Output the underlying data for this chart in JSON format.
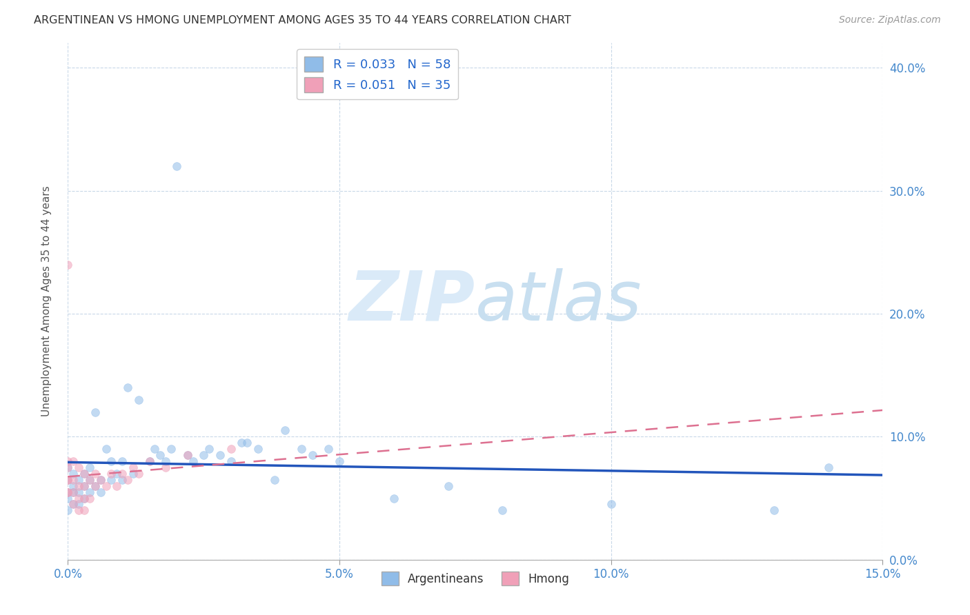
{
  "title": "ARGENTINEAN VS HMONG UNEMPLOYMENT AMONG AGES 35 TO 44 YEARS CORRELATION CHART",
  "source": "Source: ZipAtlas.com",
  "ylabel": "Unemployment Among Ages 35 to 44 years",
  "xlim": [
    0.0,
    0.15
  ],
  "ylim": [
    0.0,
    0.42
  ],
  "xticks": [
    0.0,
    0.05,
    0.1,
    0.15
  ],
  "yticks": [
    0.0,
    0.1,
    0.2,
    0.3,
    0.4
  ],
  "argentinean_color": "#90bce8",
  "hmong_color": "#f0a0b8",
  "regression_blue_color": "#2255bb",
  "regression_pink_color": "#dd7090",
  "background_color": "#ffffff",
  "watermark_color": "#daeaf8",
  "scatter_alpha": 0.55,
  "marker_size": 72,
  "argentineans_x": [
    0.0,
    0.0,
    0.0,
    0.0,
    0.0,
    0.001,
    0.001,
    0.001,
    0.001,
    0.002,
    0.002,
    0.002,
    0.003,
    0.003,
    0.003,
    0.004,
    0.004,
    0.004,
    0.005,
    0.005,
    0.006,
    0.006,
    0.007,
    0.008,
    0.008,
    0.009,
    0.01,
    0.01,
    0.011,
    0.012,
    0.013,
    0.015,
    0.016,
    0.017,
    0.018,
    0.019,
    0.02,
    0.022,
    0.023,
    0.025,
    0.026,
    0.028,
    0.03,
    0.032,
    0.033,
    0.035,
    0.038,
    0.04,
    0.043,
    0.045,
    0.048,
    0.05,
    0.06,
    0.07,
    0.08,
    0.1,
    0.13,
    0.14
  ],
  "argentineans_y": [
    0.065,
    0.055,
    0.075,
    0.05,
    0.04,
    0.07,
    0.06,
    0.055,
    0.045,
    0.065,
    0.055,
    0.045,
    0.07,
    0.06,
    0.05,
    0.065,
    0.055,
    0.075,
    0.06,
    0.12,
    0.065,
    0.055,
    0.09,
    0.065,
    0.08,
    0.07,
    0.08,
    0.065,
    0.14,
    0.07,
    0.13,
    0.08,
    0.09,
    0.085,
    0.08,
    0.09,
    0.32,
    0.085,
    0.08,
    0.085,
    0.09,
    0.085,
    0.08,
    0.095,
    0.095,
    0.09,
    0.065,
    0.105,
    0.09,
    0.085,
    0.09,
    0.08,
    0.05,
    0.06,
    0.04,
    0.045,
    0.04,
    0.075
  ],
  "hmong_x": [
    0.0,
    0.0,
    0.0,
    0.0,
    0.0,
    0.0,
    0.0,
    0.001,
    0.001,
    0.001,
    0.001,
    0.002,
    0.002,
    0.002,
    0.002,
    0.003,
    0.003,
    0.003,
    0.003,
    0.004,
    0.004,
    0.005,
    0.005,
    0.006,
    0.007,
    0.008,
    0.009,
    0.01,
    0.011,
    0.012,
    0.013,
    0.015,
    0.018,
    0.022,
    0.03
  ],
  "hmong_y": [
    0.24,
    0.08,
    0.065,
    0.055,
    0.075,
    0.065,
    0.055,
    0.08,
    0.065,
    0.055,
    0.045,
    0.075,
    0.06,
    0.05,
    0.04,
    0.07,
    0.06,
    0.05,
    0.04,
    0.065,
    0.05,
    0.07,
    0.06,
    0.065,
    0.06,
    0.07,
    0.06,
    0.07,
    0.065,
    0.075,
    0.07,
    0.08,
    0.075,
    0.085,
    0.09
  ]
}
